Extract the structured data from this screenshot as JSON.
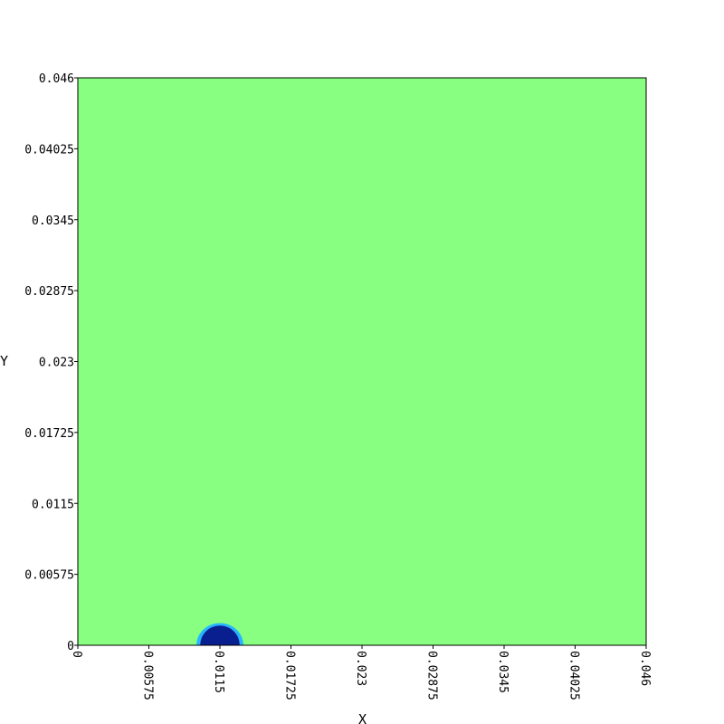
{
  "chart_data": {
    "type": "heatmap",
    "title": "",
    "xlabel": "X",
    "ylabel": "Y",
    "xlim": [
      0,
      0.046
    ],
    "ylim": [
      0,
      0.046
    ],
    "x_ticks": [
      "0",
      "0.00575",
      "0.0115",
      "0.01725",
      "0.023",
      "0.02875",
      "0.0345",
      "0.04025",
      "0.046"
    ],
    "y_ticks": [
      "0",
      "0.00575",
      "0.0115",
      "0.01725",
      "0.023",
      "0.02875",
      "0.0345",
      "0.04025",
      "0.046"
    ],
    "background_value_color": "#88ff80",
    "feature": {
      "description": "dark blue dome-shaped region on the bottom boundary",
      "center_x": 0.0115,
      "base_y": 0,
      "half_width": 0.0016,
      "height": 0.0016,
      "fringe_half_width": 0.0019,
      "fringe_height": 0.0018,
      "core_color": "#0a1f8f",
      "fringe_color": "#28b4ff"
    },
    "grid": false
  }
}
